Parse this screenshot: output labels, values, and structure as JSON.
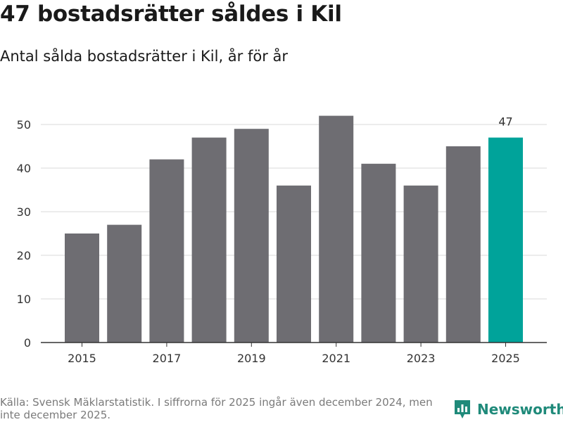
{
  "header": {
    "title": "47 bostadsrätter såldes i Kil",
    "subtitle": "Antal sålda bostadsrätter i Kil, år för år"
  },
  "chart_data": {
    "type": "bar",
    "title": "47 bostadsrätter såldes i Kil",
    "subtitle": "Antal sålda bostadsrätter i Kil, år för år",
    "categories": [
      "2015",
      "2016",
      "2017",
      "2018",
      "2019",
      "2020",
      "2021",
      "2022",
      "2023",
      "2024",
      "2025"
    ],
    "values": [
      25,
      27,
      42,
      47,
      49,
      36,
      52,
      41,
      36,
      45,
      47
    ],
    "x_tick_labels": [
      "2015",
      "2017",
      "2019",
      "2021",
      "2023",
      "2025"
    ],
    "y_ticks": [
      0,
      10,
      20,
      30,
      40,
      50
    ],
    "ylim": [
      0,
      50
    ],
    "xlabel": "",
    "ylabel": "",
    "grid": true,
    "highlight_category": "2025",
    "highlight_label": "47",
    "colors": {
      "bar": "#6e6d72",
      "highlight": "#00a39a",
      "grid": "#d9d9d9",
      "axis": "#333333"
    }
  },
  "footer": {
    "source": "Källa: Svensk Mäklarstatistik. I siffrorna för 2025 ingår även december 2024, men inte december 2025.",
    "brand": "Newsworthy",
    "brand_icon": "newsworthy-logo-icon",
    "brand_color": "#1f8a7a"
  }
}
